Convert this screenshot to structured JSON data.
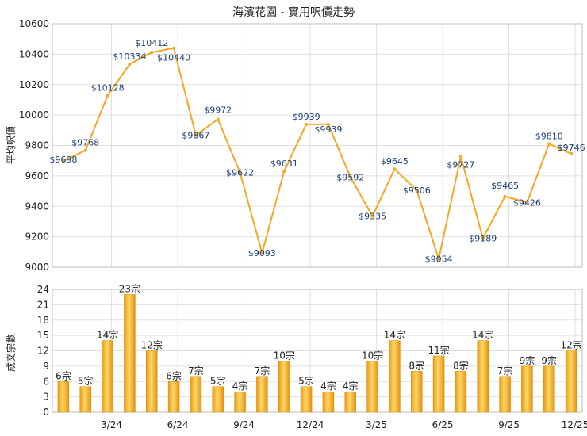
{
  "chart_data": [
    {
      "type": "line",
      "title": "海濱花園 - 實用呎價走勢",
      "ylabel": "平均呎價",
      "ylim": [
        9000,
        10600
      ],
      "yticks": [
        9000,
        9200,
        9400,
        9600,
        9800,
        10000,
        10200,
        10400,
        10600
      ],
      "grid": true,
      "color": "#f5a623",
      "x_tick_labels": [
        "3/24",
        "6/24",
        "9/24",
        "12/24",
        "3/25",
        "6/25",
        "9/25",
        "12/25"
      ],
      "series": [
        {
          "values": [
            9698,
            9768,
            10128,
            10334,
            10412,
            10440,
            9867,
            9972,
            9622,
            9093,
            9631,
            9939,
            9939,
            9592,
            9335,
            9645,
            9506,
            9054,
            9727,
            9189,
            9465,
            9426,
            9810,
            9746
          ],
          "labels": [
            "$9698",
            "$9768",
            "$10128",
            "$10334",
            "$10412",
            "$10440",
            "$9867",
            "$9972",
            "$9622",
            "$9093",
            "$9631",
            "$9939",
            "$9939",
            "$9592",
            "$9335",
            "$9645",
            "$9506",
            "$9054",
            "$9727",
            "$9189",
            "$9465",
            "$9426",
            "$9810",
            "$9746"
          ]
        }
      ]
    },
    {
      "type": "bar",
      "ylabel": "成交宗數",
      "ylim": [
        0,
        24
      ],
      "yticks": [
        0,
        3,
        6,
        9,
        12,
        15,
        18,
        21,
        24
      ],
      "grid": true,
      "color": "#f5b82e",
      "x_tick_labels": [
        "3/24",
        "6/24",
        "9/24",
        "12/24",
        "3/25",
        "6/25",
        "9/25",
        "12/25"
      ],
      "series": [
        {
          "values": [
            6,
            5,
            14,
            23,
            12,
            6,
            7,
            5,
            4,
            7,
            10,
            5,
            4,
            4,
            10,
            14,
            8,
            11,
            8,
            14,
            7,
            9,
            9,
            12
          ],
          "labels": [
            "6宗",
            "5宗",
            "14宗",
            "23宗",
            "12宗",
            "6宗",
            "7宗",
            "5宗",
            "4宗",
            "7宗",
            "10宗",
            "5宗",
            "4宗",
            "4宗",
            "10宗",
            "14宗",
            "8宗",
            "11宗",
            "8宗",
            "14宗",
            "7宗",
            "9宗",
            "9宗",
            "12宗"
          ]
        }
      ]
    }
  ]
}
